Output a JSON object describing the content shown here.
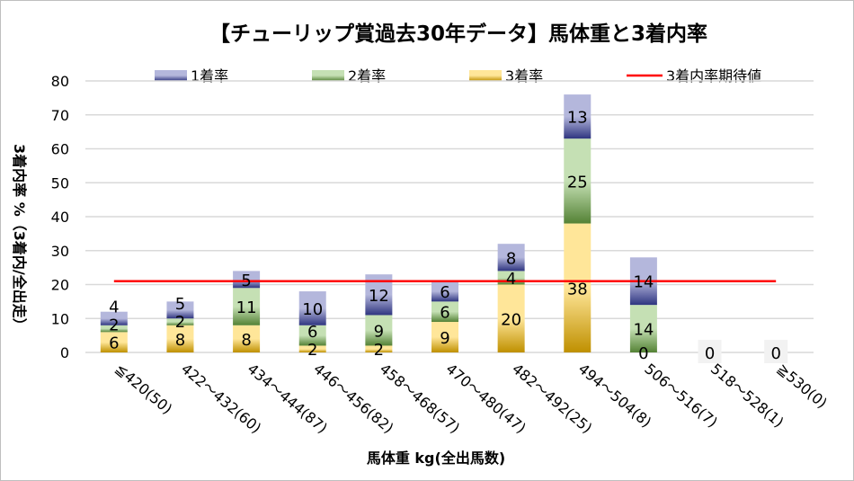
{
  "chart_data": {
    "type": "bar",
    "stacked": true,
    "title": "【チューリップ賞過去30年データ】馬体重と3着内率",
    "xlabel": "馬体重 kg(全出馬数)",
    "ylabel": "3着内率 %（3着内/全出走）",
    "ylim": [
      0,
      80
    ],
    "yticks": [
      0,
      10,
      20,
      30,
      40,
      50,
      60,
      70,
      80
    ],
    "grid": true,
    "legend_position": "top",
    "categories": [
      "≦420(50)",
      "422～432(60)",
      "434～444(87)",
      "446～456(82)",
      "458～468(57)",
      "470～480(47)",
      "482～492(25)",
      "494～504(8)",
      "506～516(7)",
      "518～528(1)",
      "≧530(0)"
    ],
    "series": [
      {
        "name": "3着率",
        "values": [
          6,
          8,
          8,
          2,
          2,
          9,
          20,
          38,
          0,
          0,
          0
        ],
        "color": "#bf9000",
        "color_light": "#ffe699"
      },
      {
        "name": "2着率",
        "values": [
          2,
          2,
          11,
          6,
          9,
          6,
          4,
          25,
          14,
          0,
          0
        ],
        "color": "#548235",
        "color_light": "#c5e0b4"
      },
      {
        "name": "1着率",
        "values": [
          4,
          5,
          5,
          10,
          12,
          6,
          8,
          13,
          14,
          0,
          0
        ],
        "color": "#2f3580",
        "color_light": "#b4b7dc"
      }
    ],
    "reference_line": {
      "name": "3着内率期待値",
      "value": 21,
      "color": "#ff0000"
    }
  }
}
